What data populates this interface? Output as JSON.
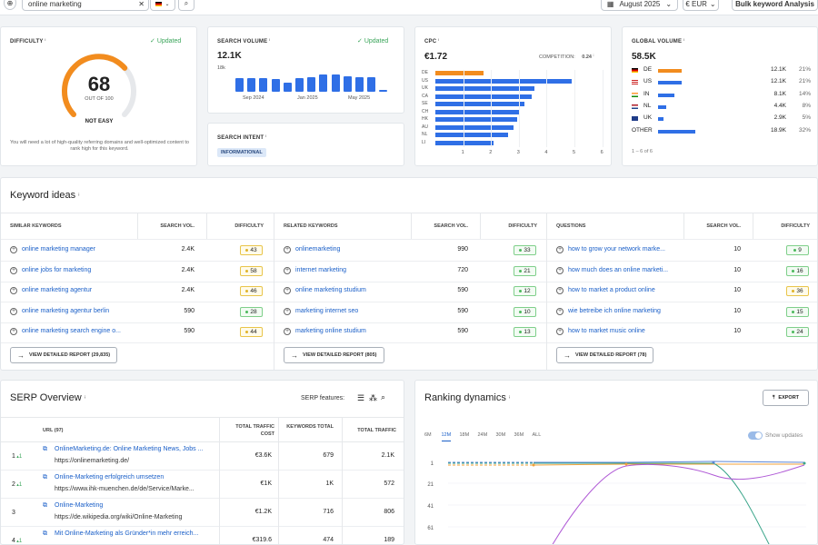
{
  "toolbar": {
    "search_value": "online marketing",
    "date_label": "August 2025",
    "currency_label": "€ EUR",
    "bulk_label": "Bulk keyword Analysis"
  },
  "difficulty": {
    "label": "DIFFICULTY",
    "updated": "Updated",
    "value": "68",
    "out_of": "OUT OF 100",
    "level": "NOT EASY",
    "fraction": 0.68,
    "description": "You will need a lot of high-quality referring domains and well-optimized content to rank high for this keyword."
  },
  "search_volume": {
    "label": "SEARCH VOLUME",
    "updated": "Updated",
    "value": "12.1K",
    "axis_top": "18k",
    "ticks": [
      "Sep 2024",
      "Jan 2025",
      "May 2025"
    ]
  },
  "search_intent": {
    "label": "SEARCH INTENT",
    "badge": "INFORMATIONAL"
  },
  "cpc": {
    "label": "CPC",
    "value": "€1.72",
    "competition_label": "COMPETITION:",
    "competition_value": "0.24"
  },
  "global_volume": {
    "label": "GLOBAL VOLUME",
    "value": "58.5K",
    "rows": [
      {
        "country": "DE",
        "value": "12.1K",
        "pct": "21%",
        "share": 0.64,
        "color": "#f28c1e"
      },
      {
        "country": "US",
        "value": "12.1K",
        "pct": "21%",
        "share": 0.64,
        "color": "#2f6fe6"
      },
      {
        "country": "IN",
        "value": "8.1K",
        "pct": "14%",
        "share": 0.43,
        "color": "#2f6fe6"
      },
      {
        "country": "NL",
        "value": "4.4K",
        "pct": "8%",
        "share": 0.23,
        "color": "#2f6fe6"
      },
      {
        "country": "UK",
        "value": "2.9K",
        "pct": "5%",
        "share": 0.15,
        "color": "#2f6fe6"
      },
      {
        "country": "OTHER",
        "value": "18.9K",
        "pct": "32%",
        "share": 1.0,
        "color": "#2f6fe6"
      }
    ],
    "pager": "1 – 6 of 6"
  },
  "keyword_ideas": {
    "title": "Keyword ideas",
    "similar": {
      "header": "SIMILAR KEYWORDS",
      "vol_header": "SEARCH VOL.",
      "kd_header": "DIFFICULTY",
      "rows": [
        {
          "kw": "online marketing manager",
          "vol": "2.4K",
          "kd": "43",
          "c": "y"
        },
        {
          "kw": "online jobs for marketing",
          "vol": "2.4K",
          "kd": "58",
          "c": "y"
        },
        {
          "kw": "online marketing agentur",
          "vol": "2.4K",
          "kd": "46",
          "c": "y"
        },
        {
          "kw": "online marketing agentur berlin",
          "vol": "590",
          "kd": "28",
          "c": "g"
        },
        {
          "kw": "online marketing search engine o...",
          "vol": "590",
          "kd": "44",
          "c": "y"
        }
      ],
      "button": "VIEW DETAILED REPORT (29,835)"
    },
    "related": {
      "header": "RELATED KEYWORDS",
      "vol_header": "SEARCH VOL.",
      "kd_header": "DIFFICULTY",
      "rows": [
        {
          "kw": "onlinemarketing",
          "vol": "990",
          "kd": "33",
          "c": "g"
        },
        {
          "kw": "internet marketing",
          "vol": "720",
          "kd": "21",
          "c": "g"
        },
        {
          "kw": "online marketing studium",
          "vol": "590",
          "kd": "12",
          "c": "g"
        },
        {
          "kw": "marketing internet seo",
          "vol": "590",
          "kd": "10",
          "c": "g"
        },
        {
          "kw": "marketing online studium",
          "vol": "590",
          "kd": "13",
          "c": "g"
        }
      ],
      "button": "VIEW DETAILED REPORT (805)"
    },
    "questions": {
      "header": "QUESTIONS",
      "vol_header": "SEARCH VOL.",
      "kd_header": "DIFFICULTY",
      "rows": [
        {
          "kw": "how to grow your network marke...",
          "vol": "10",
          "kd": "9",
          "c": "g"
        },
        {
          "kw": "how much does an online marketi...",
          "vol": "10",
          "kd": "16",
          "c": "g"
        },
        {
          "kw": "how to market a product online",
          "vol": "10",
          "kd": "36",
          "c": "y"
        },
        {
          "kw": "wie betreibe ich online marketing",
          "vol": "10",
          "kd": "15",
          "c": "g"
        },
        {
          "kw": "how to market music online",
          "vol": "10",
          "kd": "24",
          "c": "g"
        }
      ],
      "button": "VIEW DETAILED REPORT (78)"
    }
  },
  "serp": {
    "title": "SERP Overview",
    "features_label": "SERP features:",
    "headers": {
      "url": "URL (97)",
      "cost": "TOTAL TRAFFIC COST",
      "kw": "KEYWORDS TOTAL",
      "traffic": "TOTAL TRAFFIC"
    },
    "rows": [
      {
        "pos": "1",
        "chg": "1",
        "title": "OnlineMarketing.de: Online Marketing News, Jobs ...",
        "url": "https://onlinemarketing.de/",
        "cost": "€3.6K",
        "kw": "679",
        "traffic": "2.1K"
      },
      {
        "pos": "2",
        "chg": "1",
        "title": "Online-Marketing erfolgreich umsetzen",
        "url": "https://www.ihk-muenchen.de/de/Service/Marke...",
        "cost": "€1K",
        "kw": "1K",
        "traffic": "572"
      },
      {
        "pos": "3",
        "chg": "",
        "title": "Online-Marketing",
        "url": "https://de.wikipedia.org/wiki/Online-Marketing",
        "cost": "€1.2K",
        "kw": "716",
        "traffic": "806"
      },
      {
        "pos": "4",
        "chg": "1",
        "title": "Mit Online-Marketing als Gründer*in mehr erreich...",
        "url": "",
        "cost": "€319.6",
        "kw": "474",
        "traffic": "189"
      }
    ]
  },
  "ranking": {
    "title": "Ranking dynamics",
    "export": "EXPORT",
    "ranges": [
      "6M",
      "12M",
      "18M",
      "24M",
      "30M",
      "36M",
      "ALL"
    ],
    "active_range": "12M",
    "show_updates": "Show updates",
    "y_ticks": [
      "1",
      "21",
      "41",
      "61"
    ]
  }
}
